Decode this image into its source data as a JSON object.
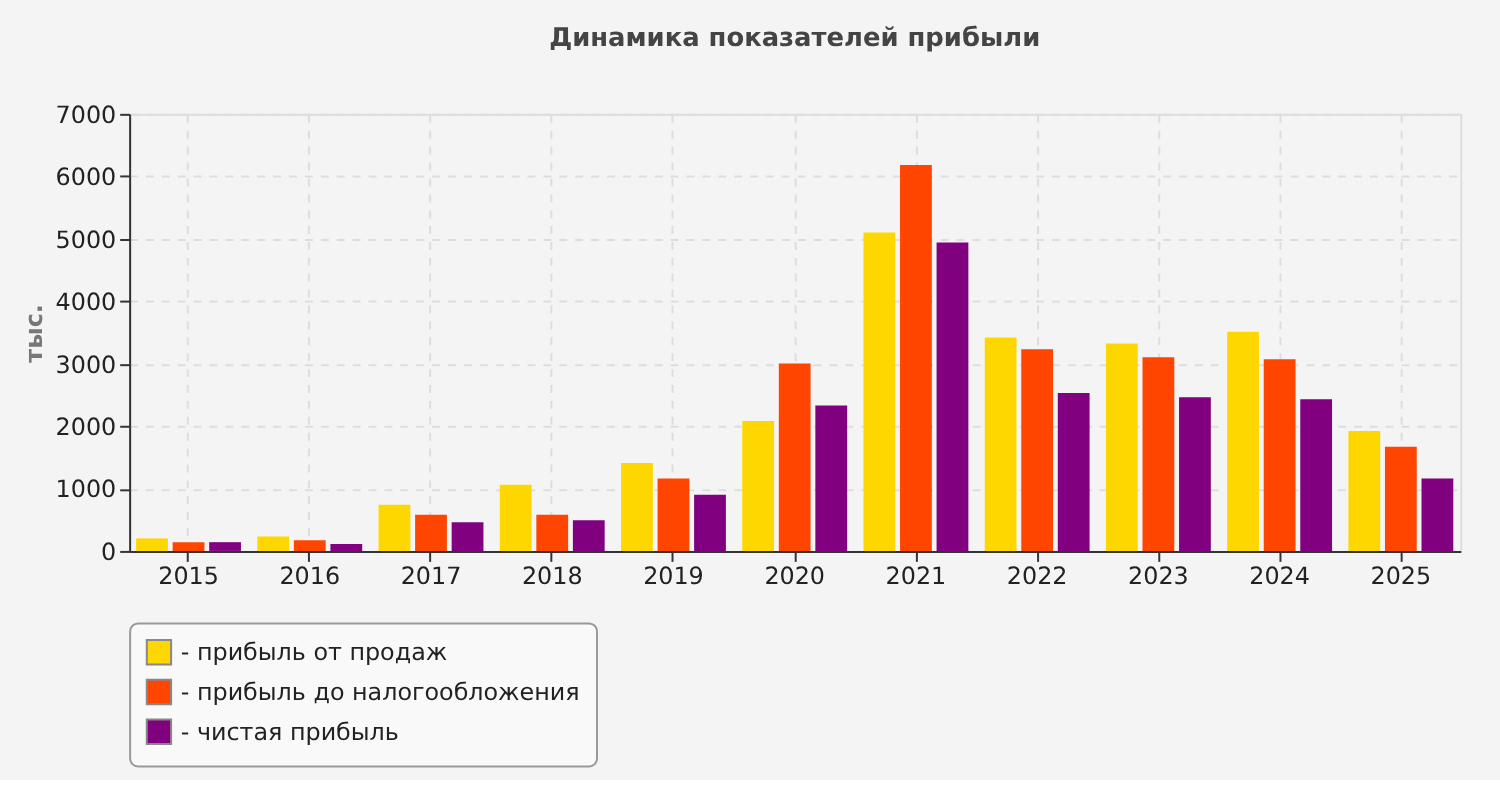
{
  "chart_data": {
    "type": "bar",
    "title": "Динамика показателей прибыли",
    "ylabel": "тыс.",
    "categories": [
      "2015",
      "2016",
      "2017",
      "2018",
      "2019",
      "2020",
      "2021",
      "2022",
      "2023",
      "2024",
      "2025"
    ],
    "series": [
      {
        "name": "- прибыль от продаж",
        "color": "#ffd700",
        "values": [
          200,
          230,
          740,
          1060,
          1410,
          2080,
          5100,
          3420,
          3320,
          3510,
          1920
        ]
      },
      {
        "name": "- прибыль до налогообложения",
        "color": "#ff4500",
        "values": [
          140,
          170,
          580,
          580,
          1160,
          3000,
          6180,
          3230,
          3100,
          3070,
          1670
        ]
      },
      {
        "name": "- чистая прибыль",
        "color": "#800080",
        "values": [
          140,
          110,
          460,
          490,
          900,
          2330,
          4940,
          2530,
          2460,
          2430,
          1160
        ]
      }
    ],
    "ylim": [
      0,
      7000
    ],
    "yticks": [
      0,
      1000,
      2000,
      3000,
      4000,
      5000,
      6000,
      7000
    ],
    "grid": true,
    "legend": "bottom"
  }
}
